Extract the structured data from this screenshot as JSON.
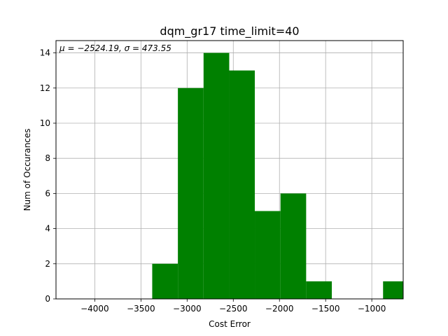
{
  "chart_data": {
    "type": "bar",
    "title": "dqm_gr17 time_limit=40",
    "xlabel": "Cost Error",
    "ylabel": "Num of Occurances",
    "annotation": "μ = −2524.19,  σ = 473.55",
    "xlim": [
      -4420,
      -660
    ],
    "ylim": [
      0,
      14.7
    ],
    "xticks": [
      -4000,
      -3500,
      -3000,
      -2500,
      -2000,
      -1500,
      -1000
    ],
    "xtick_labels": [
      "−4000",
      "−3500",
      "−3000",
      "−2500",
      "−2000",
      "−1500",
      "−1000"
    ],
    "yticks": [
      0,
      2,
      4,
      6,
      8,
      10,
      12,
      14
    ],
    "ytick_labels": [
      "0",
      "2",
      "4",
      "6",
      "8",
      "10",
      "12",
      "14"
    ],
    "grid": true,
    "bar_color": "#008000",
    "bins": [
      {
        "x0": -3378,
        "x1": -3100,
        "count": 2
      },
      {
        "x0": -3100,
        "x1": -2822,
        "count": 12
      },
      {
        "x0": -2822,
        "x1": -2544,
        "count": 14
      },
      {
        "x0": -2544,
        "x1": -2267,
        "count": 13
      },
      {
        "x0": -2267,
        "x1": -1989,
        "count": 5
      },
      {
        "x0": -1989,
        "x1": -1711,
        "count": 6
      },
      {
        "x0": -1711,
        "x1": -1433,
        "count": 1
      },
      {
        "x0": -1433,
        "x1": -1155,
        "count": 0
      },
      {
        "x0": -1155,
        "x1": -878,
        "count": 0
      },
      {
        "x0": -878,
        "x1": -600,
        "count": 1
      }
    ]
  }
}
